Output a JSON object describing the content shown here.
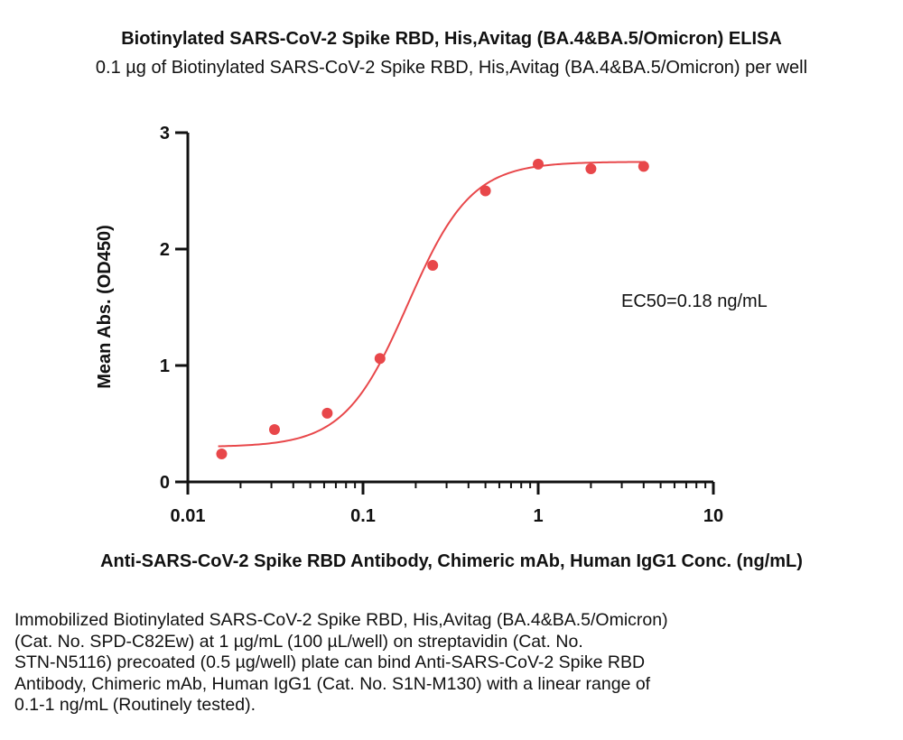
{
  "chart_data": {
    "type": "scatter",
    "title": "Biotinylated SARS-CoV-2 Spike RBD, His,Avitag (BA.4&BA.5/Omicron) ELISA",
    "subtitle": "0.1 µg of Biotinylated SARS-CoV-2 Spike RBD, His,Avitag (BA.4&BA.5/Omicron) per well",
    "xlabel": "Anti-SARS-CoV-2 Spike RBD Antibody, Chimeric mAb, Human IgG1 Conc. (ng/mL)",
    "ylabel": "Mean Abs. (OD450)",
    "xscale": "log",
    "xlim": [
      0.01,
      10
    ],
    "ylim": [
      0,
      3
    ],
    "x_ticks": [
      "0.01",
      "0.1",
      "1",
      "10"
    ],
    "y_ticks": [
      "0",
      "1",
      "2",
      "3"
    ],
    "grid": false,
    "series": [
      {
        "x": [
          0.0156,
          0.03125,
          0.0625,
          0.125,
          0.25,
          0.5,
          1,
          2,
          4
        ],
        "y": [
          0.24,
          0.45,
          0.59,
          1.06,
          1.86,
          2.5,
          2.73,
          2.69,
          2.71
        ],
        "color": "#e8474a"
      }
    ],
    "fit_curve": {
      "model": "4PL",
      "bottom": 0.3,
      "top": 2.75,
      "ec50": 0.18,
      "hill": 2.4,
      "color": "#e8474a"
    },
    "annotation": "EC50=0.18 ng/mL"
  },
  "caption_lines": [
    "Immobilized Biotinylated SARS-CoV-2 Spike RBD, His,Avitag (BA.4&BA.5/Omicron)",
    "(Cat. No. SPD-C82Ew) at 1 µg/mL (100 µL/well) on streptavidin (Cat. No.",
    "STN-N5116) precoated (0.5 µg/well) plate can bind Anti-SARS-CoV-2 Spike RBD",
    "Antibody, Chimeric mAb, Human IgG1 (Cat. No. S1N-M130) with a linear range of",
    "0.1-1 ng/mL (Routinely tested)."
  ]
}
